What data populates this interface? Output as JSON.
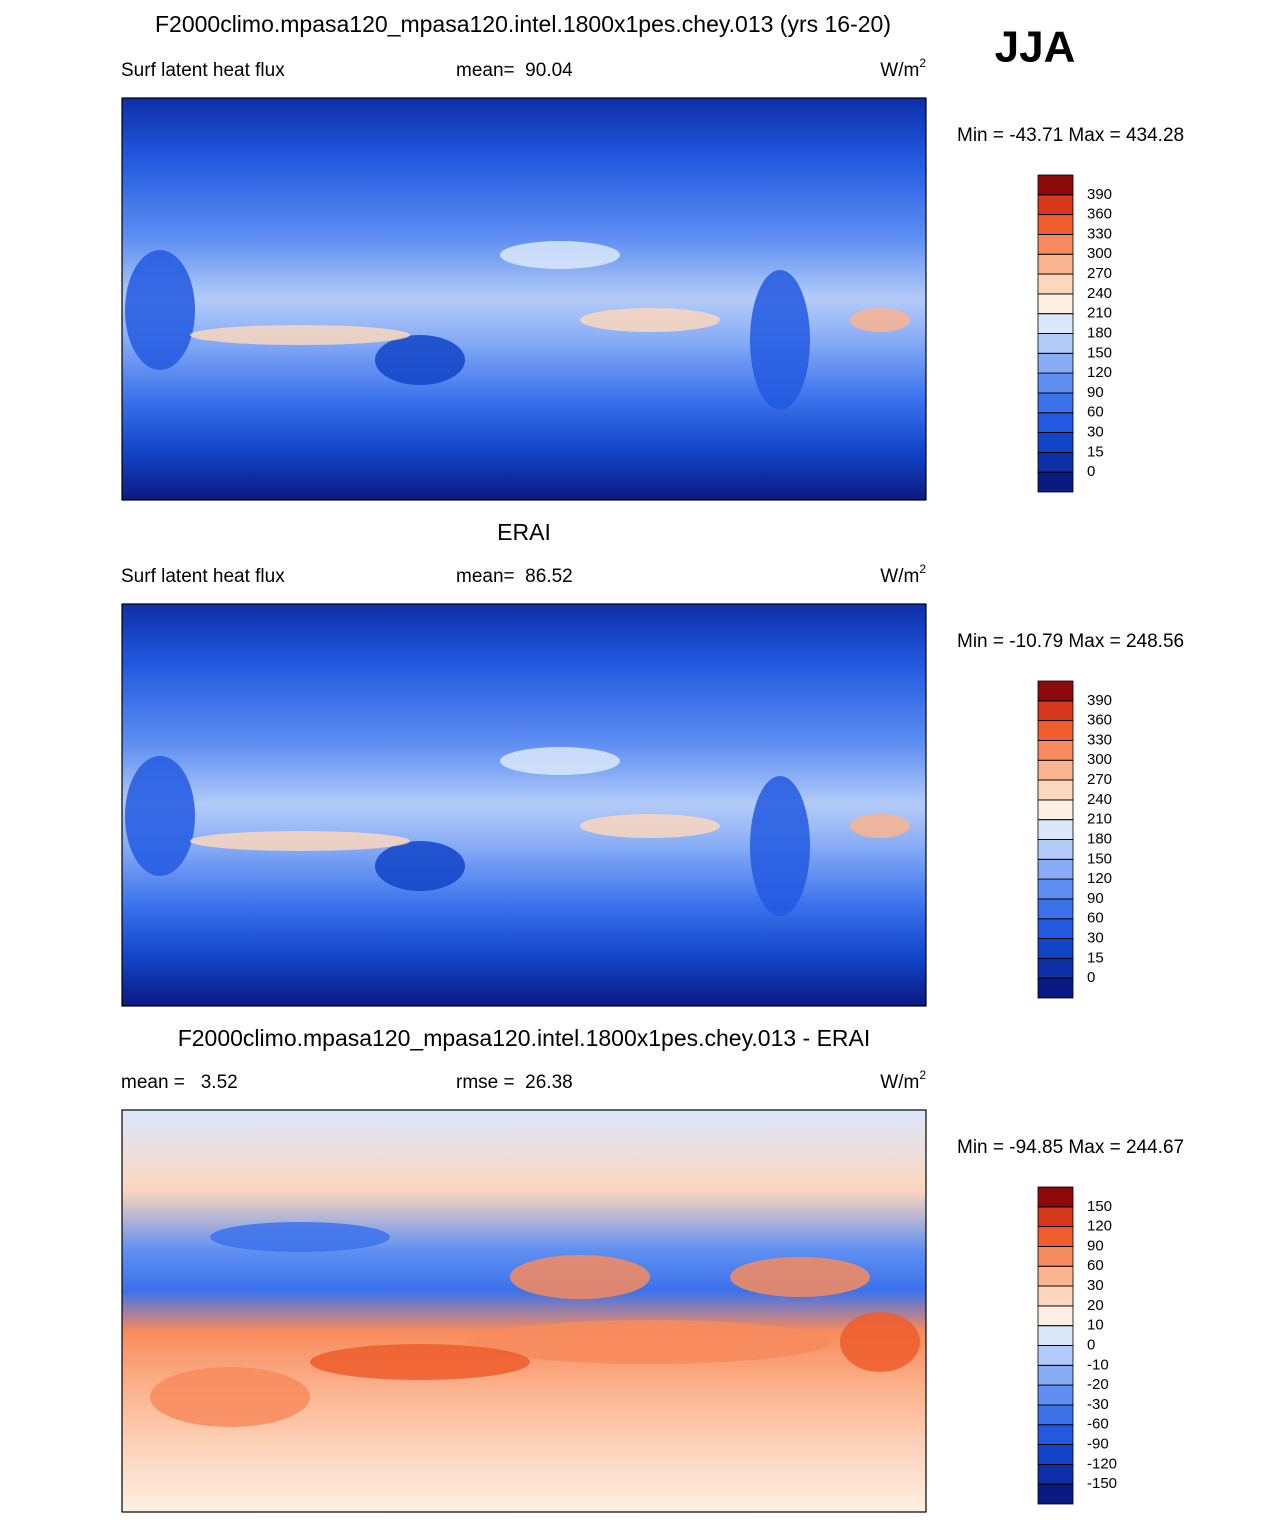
{
  "title": "F2000climo.mpasa120_mpasa120.intel.1800x1pes.chey.013 (yrs 16-20)",
  "season": "JJA",
  "panels": [
    {
      "left": "Surf latent heat flux",
      "center": "mean=  90.04",
      "units": "W/m",
      "units_sup": "2",
      "range_text": "Min = -43.71 Max = 434.28",
      "levels": [
        0,
        15,
        30,
        60,
        90,
        120,
        150,
        180,
        210,
        240,
        270,
        300,
        330,
        360,
        390
      ],
      "colors": [
        "#0b1a82",
        "#0d2fa8",
        "#1244c8",
        "#2259e0",
        "#3b72ec",
        "#5f8ff2",
        "#88adf6",
        "#b3cbf8",
        "#dbe7fb",
        "#fdf0e2",
        "#fcd6bd",
        "#fbb48f",
        "#f88b5d",
        "#ef5d2c",
        "#d6371a",
        "#8c0a0a"
      ]
    },
    {
      "title": "ERAI",
      "left": "Surf latent heat flux",
      "center": "mean=  86.52",
      "units": "W/m",
      "units_sup": "2",
      "range_text": "Min = -10.79 Max = 248.56",
      "levels": [
        0,
        15,
        30,
        60,
        90,
        120,
        150,
        180,
        210,
        240,
        270,
        300,
        330,
        360,
        390
      ],
      "colors": [
        "#0b1a82",
        "#0d2fa8",
        "#1244c8",
        "#2259e0",
        "#3b72ec",
        "#5f8ff2",
        "#88adf6",
        "#b3cbf8",
        "#dbe7fb",
        "#fdf0e2",
        "#fcd6bd",
        "#fbb48f",
        "#f88b5d",
        "#ef5d2c",
        "#d6371a",
        "#8c0a0a"
      ]
    },
    {
      "title": "F2000climo.mpasa120_mpasa120.intel.1800x1pes.chey.013 - ERAI",
      "left": "mean =   3.52",
      "center": "rmse =  26.38",
      "units": "W/m",
      "units_sup": "2",
      "range_text": "Min = -94.85 Max = 244.67",
      "levels": [
        -150,
        -120,
        -90,
        -60,
        -30,
        -20,
        -10,
        0,
        10,
        20,
        30,
        60,
        90,
        120,
        150
      ],
      "colors": [
        "#0b1a82",
        "#0d2fa8",
        "#1244c8",
        "#2259e0",
        "#3b72ec",
        "#5f8ff2",
        "#88adf6",
        "#b3cbf8",
        "#dbe7fb",
        "#fdf0e2",
        "#fcd6bd",
        "#fbb48f",
        "#f88b5d",
        "#ef5d2c",
        "#d6371a",
        "#8c0a0a"
      ]
    }
  ]
}
